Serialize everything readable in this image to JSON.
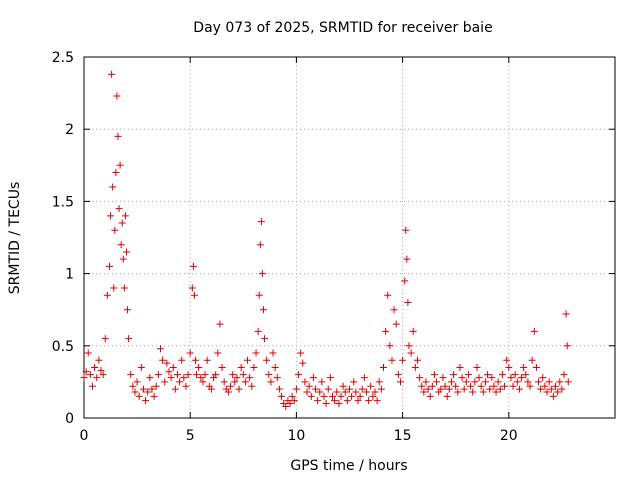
{
  "chart_data": {
    "type": "scatter",
    "title": "Day 073 of 2025, SRMTID for receiver baie",
    "xlabel": "GPS time / hours",
    "ylabel": "SRMTID / TECUs",
    "xlim": [
      0,
      25
    ],
    "ylim": [
      0,
      2.5
    ],
    "xticks": [
      0,
      5,
      10,
      15,
      20
    ],
    "xtick_labels": [
      "0",
      "5",
      "10",
      "15",
      "20"
    ],
    "yticks": [
      0,
      0.5,
      1,
      1.5,
      2,
      2.5
    ],
    "ytick_labels": [
      "0",
      "0.5",
      "1",
      "1.5",
      "2",
      "2.5"
    ],
    "grid": true,
    "marker": "plus",
    "color": "#e00000",
    "series": [
      {
        "name": "SRMTID",
        "x": [
          0.0,
          0.1,
          0.2,
          0.3,
          0.4,
          0.5,
          0.6,
          0.7,
          0.8,
          0.9,
          1.0,
          1.1,
          1.2,
          1.25,
          1.3,
          1.35,
          1.4,
          1.45,
          1.5,
          1.55,
          1.6,
          1.65,
          1.7,
          1.75,
          1.8,
          1.85,
          1.9,
          1.95,
          2.0,
          2.05,
          2.1,
          2.2,
          2.3,
          2.4,
          2.5,
          2.6,
          2.7,
          2.8,
          2.9,
          3.0,
          3.1,
          3.2,
          3.3,
          3.4,
          3.5,
          3.6,
          3.7,
          3.8,
          3.9,
          4.0,
          4.1,
          4.2,
          4.3,
          4.4,
          4.5,
          4.6,
          4.7,
          4.8,
          4.9,
          5.0,
          5.1,
          5.15,
          5.2,
          5.25,
          5.3,
          5.4,
          5.5,
          5.6,
          5.7,
          5.8,
          5.9,
          6.0,
          6.1,
          6.2,
          6.3,
          6.4,
          6.5,
          6.6,
          6.7,
          6.8,
          6.9,
          7.0,
          7.1,
          7.2,
          7.3,
          7.4,
          7.5,
          7.6,
          7.7,
          7.8,
          7.9,
          8.0,
          8.1,
          8.2,
          8.25,
          8.3,
          8.35,
          8.4,
          8.45,
          8.5,
          8.6,
          8.7,
          8.8,
          8.9,
          9.0,
          9.1,
          9.2,
          9.3,
          9.4,
          9.5,
          9.6,
          9.7,
          9.8,
          9.9,
          10.0,
          10.1,
          10.2,
          10.3,
          10.4,
          10.5,
          10.6,
          10.7,
          10.8,
          10.9,
          11.0,
          11.1,
          11.2,
          11.3,
          11.4,
          11.5,
          11.6,
          11.7,
          11.8,
          11.9,
          12.0,
          12.1,
          12.2,
          12.3,
          12.4,
          12.5,
          12.6,
          12.7,
          12.8,
          12.9,
          13.0,
          13.1,
          13.2,
          13.3,
          13.4,
          13.5,
          13.6,
          13.7,
          13.8,
          13.9,
          14.0,
          14.1,
          14.2,
          14.3,
          14.4,
          14.5,
          14.6,
          14.7,
          14.8,
          14.9,
          15.0,
          15.1,
          15.15,
          15.2,
          15.25,
          15.3,
          15.4,
          15.5,
          15.6,
          15.7,
          15.8,
          15.9,
          16.0,
          16.1,
          16.2,
          16.3,
          16.4,
          16.5,
          16.6,
          16.7,
          16.8,
          16.9,
          17.0,
          17.1,
          17.2,
          17.3,
          17.4,
          17.5,
          17.6,
          17.7,
          17.8,
          17.9,
          18.0,
          18.1,
          18.2,
          18.3,
          18.4,
          18.5,
          18.6,
          18.7,
          18.8,
          18.9,
          19.0,
          19.1,
          19.2,
          19.3,
          19.4,
          19.5,
          19.6,
          19.7,
          19.8,
          19.9,
          20.0,
          20.1,
          20.2,
          20.3,
          20.4,
          20.5,
          20.6,
          20.7,
          20.8,
          20.9,
          21.0,
          21.1,
          21.2,
          21.3,
          21.4,
          21.5,
          21.6,
          21.7,
          21.8,
          21.9,
          22.0,
          22.1,
          22.2,
          22.3,
          22.4,
          22.5,
          22.6,
          22.7,
          22.75,
          22.8
        ],
        "y": [
          0.28,
          0.32,
          0.45,
          0.3,
          0.22,
          0.35,
          0.28,
          0.4,
          0.33,
          0.3,
          0.55,
          0.85,
          1.05,
          1.4,
          2.38,
          1.6,
          0.9,
          1.3,
          1.7,
          2.23,
          1.95,
          1.45,
          1.75,
          1.2,
          1.35,
          1.1,
          0.9,
          1.4,
          1.15,
          0.75,
          0.55,
          0.3,
          0.22,
          0.18,
          0.25,
          0.15,
          0.35,
          0.2,
          0.12,
          0.18,
          0.28,
          0.2,
          0.15,
          0.22,
          0.3,
          0.48,
          0.4,
          0.25,
          0.38,
          0.32,
          0.28,
          0.35,
          0.2,
          0.3,
          0.25,
          0.4,
          0.28,
          0.22,
          0.3,
          0.45,
          0.9,
          1.05,
          0.85,
          0.4,
          0.3,
          0.35,
          0.28,
          0.25,
          0.3,
          0.4,
          0.22,
          0.2,
          0.28,
          0.3,
          0.45,
          0.65,
          0.35,
          0.25,
          0.2,
          0.18,
          0.22,
          0.3,
          0.25,
          0.28,
          0.2,
          0.35,
          0.3,
          0.25,
          0.4,
          0.28,
          0.22,
          0.35,
          0.45,
          0.6,
          0.85,
          1.2,
          1.36,
          1.0,
          0.75,
          0.55,
          0.4,
          0.3,
          0.25,
          0.45,
          0.35,
          0.28,
          0.2,
          0.15,
          0.1,
          0.08,
          0.12,
          0.1,
          0.15,
          0.12,
          0.2,
          0.3,
          0.45,
          0.38,
          0.25,
          0.18,
          0.22,
          0.15,
          0.28,
          0.2,
          0.12,
          0.18,
          0.25,
          0.15,
          0.1,
          0.2,
          0.28,
          0.15,
          0.12,
          0.18,
          0.1,
          0.15,
          0.22,
          0.18,
          0.12,
          0.2,
          0.15,
          0.25,
          0.18,
          0.12,
          0.15,
          0.2,
          0.28,
          0.18,
          0.12,
          0.22,
          0.15,
          0.18,
          0.12,
          0.25,
          0.2,
          0.35,
          0.6,
          0.85,
          0.5,
          0.4,
          0.75,
          0.65,
          0.3,
          0.25,
          0.4,
          0.95,
          1.3,
          1.1,
          0.8,
          0.5,
          0.45,
          0.6,
          0.35,
          0.4,
          0.28,
          0.22,
          0.18,
          0.25,
          0.2,
          0.15,
          0.22,
          0.3,
          0.25,
          0.18,
          0.2,
          0.28,
          0.22,
          0.15,
          0.2,
          0.25,
          0.3,
          0.22,
          0.18,
          0.35,
          0.28,
          0.2,
          0.25,
          0.3,
          0.22,
          0.18,
          0.25,
          0.35,
          0.28,
          0.22,
          0.18,
          0.25,
          0.3,
          0.2,
          0.28,
          0.22,
          0.18,
          0.25,
          0.2,
          0.3,
          0.22,
          0.4,
          0.35,
          0.28,
          0.22,
          0.3,
          0.25,
          0.2,
          0.28,
          0.35,
          0.3,
          0.25,
          0.22,
          0.4,
          0.6,
          0.35,
          0.25,
          0.2,
          0.28,
          0.22,
          0.18,
          0.25,
          0.2,
          0.15,
          0.22,
          0.18,
          0.25,
          0.2,
          0.3,
          0.72,
          0.5,
          0.25
        ]
      }
    ]
  }
}
